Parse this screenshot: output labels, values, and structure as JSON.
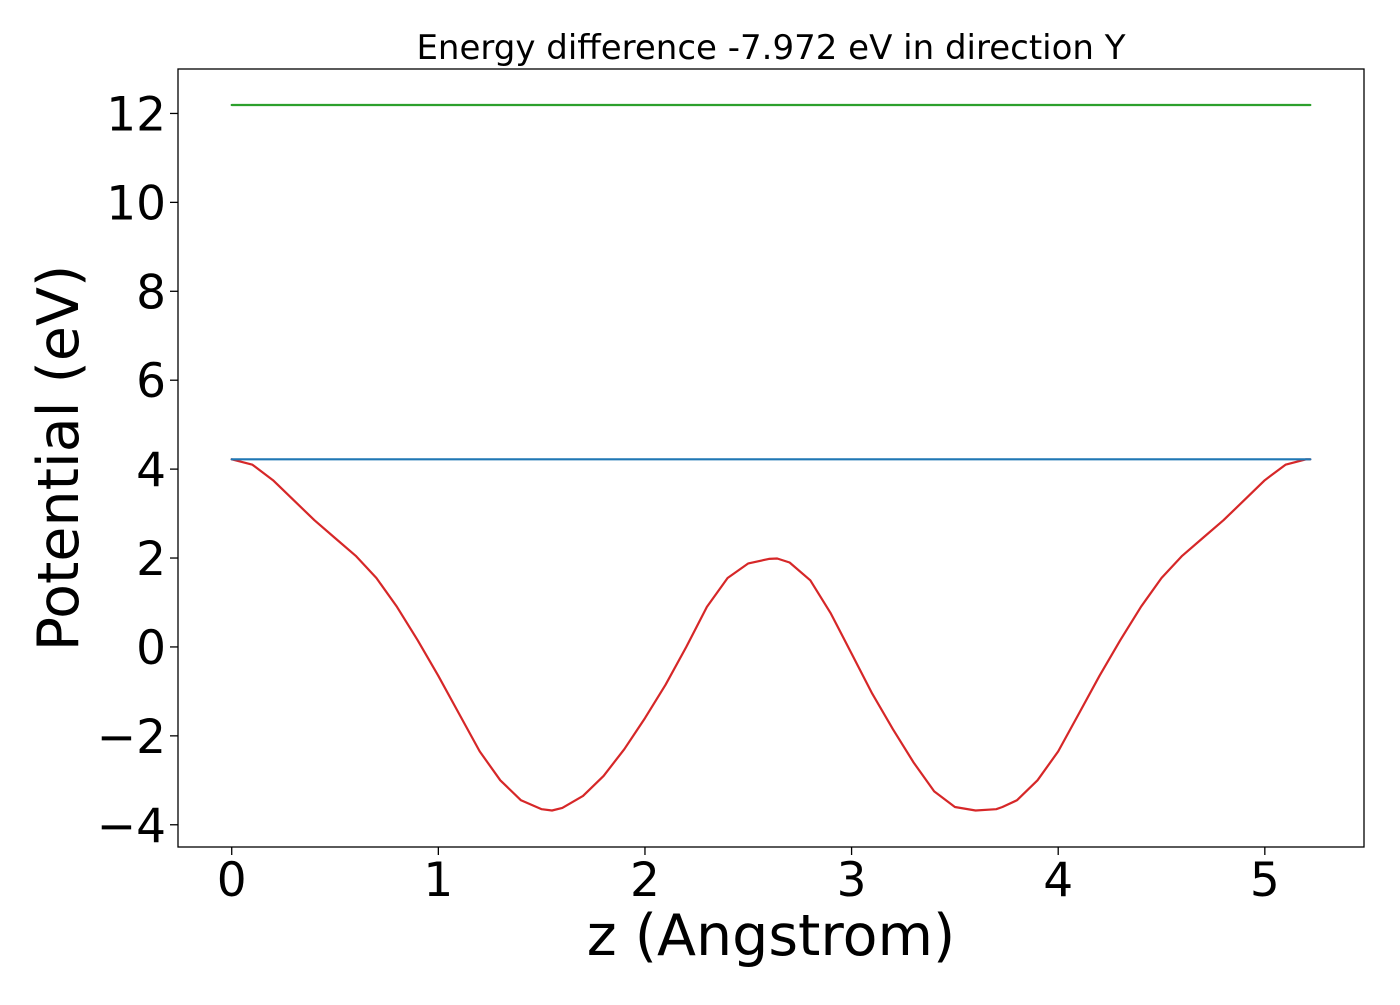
{
  "chart_data": {
    "type": "line",
    "title": "Energy difference -7.972 eV in direction Y",
    "xlabel": "z (Angstrom)",
    "ylabel": "Potential (eV)",
    "xlim": [
      -0.26,
      5.48
    ],
    "ylim": [
      -4.5,
      13.0
    ],
    "x_ticks": [
      0,
      1,
      2,
      3,
      4,
      5
    ],
    "x_tick_labels": [
      "0",
      "1",
      "2",
      "3",
      "4",
      "5"
    ],
    "y_ticks": [
      -4,
      -2,
      0,
      2,
      4,
      6,
      8,
      10,
      12
    ],
    "y_tick_labels": [
      "−4",
      "−2",
      "0",
      "2",
      "4",
      "6",
      "8",
      "10",
      "12"
    ],
    "grid": false,
    "legend": "none",
    "series": [
      {
        "color": "#d62728",
        "x": [
          0.0,
          0.1,
          0.2,
          0.3,
          0.4,
          0.5,
          0.6,
          0.7,
          0.8,
          0.9,
          1.0,
          1.1,
          1.2,
          1.3,
          1.4,
          1.5,
          1.55,
          1.6,
          1.7,
          1.8,
          1.9,
          2.0,
          2.1,
          2.2,
          2.3,
          2.4,
          2.5,
          2.6,
          2.64,
          2.7,
          2.8,
          2.9,
          3.0,
          3.1,
          3.2,
          3.3,
          3.4,
          3.5,
          3.6,
          3.7,
          3.73,
          3.8,
          3.9,
          4.0,
          4.1,
          4.2,
          4.3,
          4.4,
          4.5,
          4.6,
          4.7,
          4.8,
          4.9,
          5.0,
          5.1,
          5.2,
          5.22
        ],
        "values": [
          4.22,
          4.1,
          3.75,
          3.3,
          2.85,
          2.45,
          2.05,
          1.55,
          0.9,
          0.15,
          -0.65,
          -1.5,
          -2.35,
          -3.0,
          -3.45,
          -3.65,
          -3.68,
          -3.62,
          -3.35,
          -2.9,
          -2.3,
          -1.6,
          -0.85,
          0.0,
          0.9,
          1.55,
          1.88,
          1.98,
          1.99,
          1.9,
          1.5,
          0.75,
          -0.15,
          -1.05,
          -1.85,
          -2.6,
          -3.25,
          -3.6,
          -3.68,
          -3.65,
          -3.6,
          -3.45,
          -3.0,
          -2.35,
          -1.5,
          -0.65,
          0.15,
          0.9,
          1.55,
          2.05,
          2.45,
          2.85,
          3.3,
          3.75,
          4.1,
          4.22,
          4.22
        ]
      },
      {
        "color": "#1f77b4",
        "x": [
          0.0,
          5.22
        ],
        "values": [
          4.22,
          4.22
        ]
      },
      {
        "color": "#2ca02c",
        "x": [
          0.0,
          5.22
        ],
        "values": [
          12.19,
          12.19
        ]
      }
    ]
  }
}
